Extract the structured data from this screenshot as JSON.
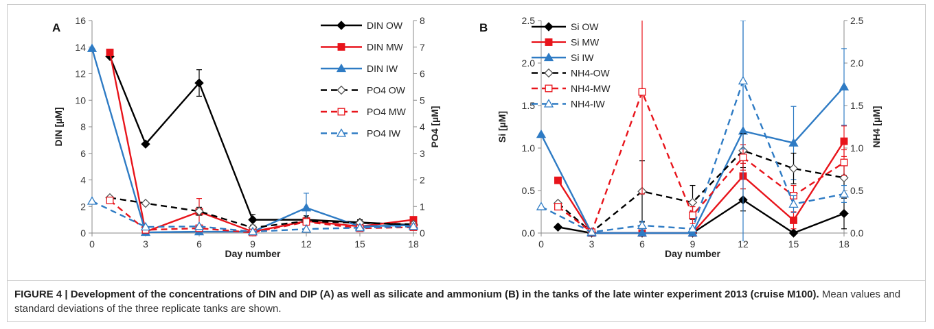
{
  "chart_data": [
    {
      "type": "line",
      "panel_label": "A",
      "xlabel": "Day number",
      "ylabel": "DIN [µM]",
      "ylabel_right": "PO4 [µM]",
      "x_ticks": [
        "0",
        "3",
        "6",
        "9",
        "12",
        "15",
        "18"
      ],
      "y_ticks": [
        "0",
        "2",
        "4",
        "6",
        "8",
        "10",
        "12",
        "14",
        "16"
      ],
      "y2_ticks": [
        "0",
        "1",
        "2",
        "3",
        "4",
        "5",
        "6",
        "7",
        "8"
      ],
      "xlim": [
        0,
        18
      ],
      "ylim": [
        0,
        16
      ],
      "y2lim": [
        0,
        8
      ],
      "legend_position": "top-right",
      "series": [
        {
          "name": "DIN OW",
          "axis": "left",
          "color": "#000000",
          "dash": false,
          "marker": "diamond",
          "fill": true,
          "x": [
            1,
            3,
            6,
            9,
            12,
            15,
            18
          ],
          "values": [
            13.3,
            6.7,
            11.3,
            1.0,
            1.0,
            0.8,
            0.6
          ],
          "errors": [
            0,
            0,
            1.0,
            0.4,
            0.3,
            0.2,
            0.2
          ]
        },
        {
          "name": "DIN MW",
          "axis": "left",
          "color": "#e8141b",
          "dash": false,
          "marker": "square",
          "fill": true,
          "x": [
            1,
            3,
            6,
            9,
            12,
            15,
            18
          ],
          "values": [
            13.6,
            0.1,
            1.6,
            0.1,
            0.9,
            0.5,
            1.0
          ],
          "errors": [
            0,
            0,
            1.0,
            0,
            0.2,
            0.1,
            0.2
          ]
        },
        {
          "name": "DIN IW",
          "axis": "left",
          "color": "#2e7bc4",
          "dash": false,
          "marker": "triangle",
          "fill": true,
          "x": [
            0,
            3,
            6,
            9,
            12,
            15,
            18
          ],
          "values": [
            13.9,
            0.05,
            0.1,
            0.1,
            1.9,
            0.5,
            0.6
          ],
          "errors": [
            0,
            0,
            0,
            0,
            1.1,
            0.2,
            0.2
          ]
        },
        {
          "name": "PO4 OW",
          "axis": "right",
          "color": "#000000",
          "dash": true,
          "marker": "diamond",
          "fill": false,
          "x": [
            1,
            3,
            6,
            9,
            12,
            15,
            18
          ],
          "values": [
            1.33,
            1.12,
            0.82,
            0.2,
            0.45,
            0.38,
            0.33
          ],
          "errors": [
            0.05,
            0,
            0.15,
            0,
            0.08,
            0,
            0
          ]
        },
        {
          "name": "PO4 MW",
          "axis": "right",
          "color": "#e8141b",
          "dash": true,
          "marker": "square",
          "fill": false,
          "x": [
            1,
            3,
            6,
            9,
            12,
            15,
            18
          ],
          "values": [
            1.23,
            0.12,
            0.18,
            0.02,
            0.42,
            0.18,
            0.22
          ],
          "errors": [
            0,
            0,
            0,
            0,
            0,
            0,
            0
          ]
        },
        {
          "name": "PO4 IW",
          "axis": "right",
          "color": "#2e7bc4",
          "dash": true,
          "marker": "triangle",
          "fill": false,
          "x": [
            0,
            3,
            6,
            9,
            12,
            15,
            18
          ],
          "values": [
            1.2,
            0.23,
            0.25,
            0.05,
            0.15,
            0.2,
            0.25
          ],
          "errors": [
            0,
            0,
            0,
            0,
            0,
            0,
            0
          ]
        }
      ]
    },
    {
      "type": "line",
      "panel_label": "B",
      "xlabel": "Day number",
      "ylabel": "Si [µM]",
      "ylabel_right": "NH4 [µM]",
      "x_ticks": [
        "0",
        "3",
        "6",
        "9",
        "12",
        "15",
        "18"
      ],
      "y_ticks": [
        "0.0",
        "0.5",
        "1.0",
        "1.5",
        "2.0",
        "2.5"
      ],
      "y2_ticks": [
        "0.0",
        "0.5",
        "1.0",
        "1.5",
        "2.0",
        "2.5"
      ],
      "xlim": [
        0,
        18
      ],
      "ylim": [
        0,
        2.5
      ],
      "y2lim": [
        0,
        2.5
      ],
      "legend_position": "top-left",
      "series": [
        {
          "name": "Si OW",
          "axis": "left",
          "color": "#000000",
          "dash": false,
          "marker": "diamond",
          "fill": true,
          "x": [
            1,
            3,
            6,
            9,
            12,
            15,
            18
          ],
          "values": [
            0.07,
            0.0,
            0.0,
            0.0,
            0.39,
            0.0,
            0.23
          ],
          "errors": [
            0,
            0,
            0,
            0,
            0.13,
            0,
            0.18
          ]
        },
        {
          "name": "Si MW",
          "axis": "left",
          "color": "#e8141b",
          "dash": false,
          "marker": "square",
          "fill": true,
          "x": [
            1,
            3,
            6,
            9,
            12,
            15,
            18
          ],
          "values": [
            0.62,
            0.0,
            0.0,
            0.0,
            0.67,
            0.15,
            1.08
          ],
          "errors": [
            0,
            0,
            0,
            0,
            0.15,
            0.1,
            0.18
          ]
        },
        {
          "name": "Si IW",
          "axis": "left",
          "color": "#2e7bc4",
          "dash": false,
          "marker": "triangle",
          "fill": true,
          "x": [
            0,
            3,
            6,
            9,
            12,
            15,
            18
          ],
          "values": [
            1.16,
            0.0,
            0.0,
            0.0,
            1.2,
            1.06,
            1.72
          ],
          "errors": [
            0,
            0,
            0,
            0,
            1.3,
            0.43,
            0.45
          ]
        },
        {
          "name": "NH4-OW",
          "axis": "right",
          "color": "#000000",
          "dash": true,
          "marker": "diamond",
          "fill": false,
          "x": [
            1,
            3,
            6,
            9,
            12,
            15,
            18
          ],
          "values": [
            0.35,
            0.01,
            0.49,
            0.36,
            0.97,
            0.76,
            0.65
          ],
          "errors": [
            0,
            0,
            0.36,
            0.2,
            0.2,
            0.18,
            0.2
          ]
        },
        {
          "name": "NH4-MW",
          "axis": "right",
          "color": "#e8141b",
          "dash": true,
          "marker": "square",
          "fill": false,
          "x": [
            1,
            3,
            6,
            9,
            12,
            15,
            18
          ],
          "values": [
            0.31,
            0.01,
            1.66,
            0.21,
            0.89,
            0.44,
            0.83
          ],
          "errors": [
            0,
            0,
            1.2,
            0.1,
            0.15,
            0.12,
            0.15
          ]
        },
        {
          "name": "NH4-IW",
          "axis": "right",
          "color": "#2e7bc4",
          "dash": true,
          "marker": "triangle",
          "fill": false,
          "x": [
            0,
            3,
            6,
            9,
            12,
            15,
            18
          ],
          "values": [
            0.31,
            0.01,
            0.09,
            0.05,
            1.79,
            0.34,
            0.46
          ],
          "errors": [
            0,
            0,
            0.05,
            0,
            0.8,
            0.1,
            0.1
          ]
        }
      ]
    }
  ],
  "caption": {
    "bold": "FIGURE 4 | Development of the concentrations of DIN and DIP (A) as well as silicate and ammonium (B) in the tanks of the late winter experiment 2013 (cruise M100).",
    "text": " Mean values and standard deviations of the three replicate tanks are shown."
  }
}
